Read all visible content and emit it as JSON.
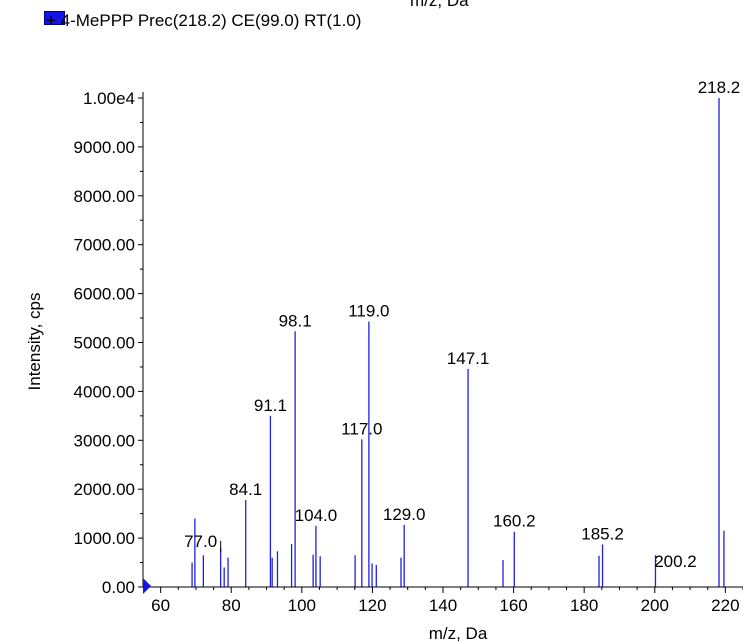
{
  "legend": {
    "top_partial_label": "m/z, Da",
    "entry": "+ 4-MePPP Prec(218.2) CE(99.0) RT(1.0)",
    "swatch_color": "#1414e6"
  },
  "chart_data": {
    "type": "bar",
    "title": "",
    "xlabel": "m/z, Da",
    "ylabel": "Intensity, cps",
    "xlim": [
      55,
      225
    ],
    "ylim": [
      0,
      10000
    ],
    "xticks": [
      60,
      80,
      100,
      120,
      140,
      160,
      180,
      200,
      220
    ],
    "yticks": [
      {
        "value": 0,
        "label": "0.00"
      },
      {
        "value": 1000,
        "label": "1000.00"
      },
      {
        "value": 2000,
        "label": "2000.00"
      },
      {
        "value": 3000,
        "label": "3000.00"
      },
      {
        "value": 4000,
        "label": "4000.00"
      },
      {
        "value": 5000,
        "label": "5000.00"
      },
      {
        "value": 6000,
        "label": "6000.00"
      },
      {
        "value": 7000,
        "label": "7000.00"
      },
      {
        "value": 8000,
        "label": "8000.00"
      },
      {
        "value": 9000,
        "label": "9000.00"
      },
      {
        "value": 10000,
        "label": "1.00e4"
      }
    ],
    "line_color": "#2020e0",
    "peaks": [
      {
        "mz": 68.9,
        "intensity": 500
      },
      {
        "mz": 69.7,
        "intensity": 1400
      },
      {
        "mz": 72.1,
        "intensity": 650
      },
      {
        "mz": 77.0,
        "intensity": 800
      },
      {
        "mz": 78.0,
        "intensity": 400
      },
      {
        "mz": 79.1,
        "intensity": 600
      },
      {
        "mz": 84.1,
        "intensity": 1780
      },
      {
        "mz": 91.1,
        "intensity": 3500
      },
      {
        "mz": 91.6,
        "intensity": 600
      },
      {
        "mz": 93.1,
        "intensity": 730
      },
      {
        "mz": 97.1,
        "intensity": 880
      },
      {
        "mz": 98.1,
        "intensity": 5230
      },
      {
        "mz": 103.2,
        "intensity": 660
      },
      {
        "mz": 104.0,
        "intensity": 1250
      },
      {
        "mz": 105.2,
        "intensity": 630
      },
      {
        "mz": 115.1,
        "intensity": 650
      },
      {
        "mz": 117.0,
        "intensity": 3020
      },
      {
        "mz": 119.0,
        "intensity": 5430
      },
      {
        "mz": 119.9,
        "intensity": 480
      },
      {
        "mz": 121.1,
        "intensity": 450
      },
      {
        "mz": 128.1,
        "intensity": 600
      },
      {
        "mz": 129.0,
        "intensity": 1270
      },
      {
        "mz": 147.1,
        "intensity": 4460
      },
      {
        "mz": 157.0,
        "intensity": 550
      },
      {
        "mz": 160.2,
        "intensity": 1130
      },
      {
        "mz": 184.2,
        "intensity": 640
      },
      {
        "mz": 185.2,
        "intensity": 870
      },
      {
        "mz": 200.2,
        "intensity": 650
      },
      {
        "mz": 218.2,
        "intensity": 10000
      },
      {
        "mz": 219.6,
        "intensity": 1150
      }
    ],
    "annotations": [
      {
        "label": "77.0",
        "mz": 77.0,
        "intensity": 800
      },
      {
        "label": "84.1",
        "mz": 84.1,
        "intensity": 1780
      },
      {
        "label": "91.1",
        "mz": 91.1,
        "intensity": 3500
      },
      {
        "label": "98.1",
        "mz": 98.1,
        "intensity": 5230
      },
      {
        "label": "104.0",
        "mz": 104.0,
        "intensity": 1250
      },
      {
        "label": "117.0",
        "mz": 117.0,
        "intensity": 3020
      },
      {
        "label": "119.0",
        "mz": 119.0,
        "intensity": 5430
      },
      {
        "label": "129.0",
        "mz": 129.0,
        "intensity": 1270
      },
      {
        "label": "147.1",
        "mz": 147.1,
        "intensity": 4460
      },
      {
        "label": "160.2",
        "mz": 160.2,
        "intensity": 1130
      },
      {
        "label": "185.2",
        "mz": 185.2,
        "intensity": 870
      },
      {
        "label": "200.2",
        "mz": 200.2,
        "intensity": 650
      },
      {
        "label": "218.2",
        "mz": 218.2,
        "intensity": 10000
      }
    ]
  }
}
